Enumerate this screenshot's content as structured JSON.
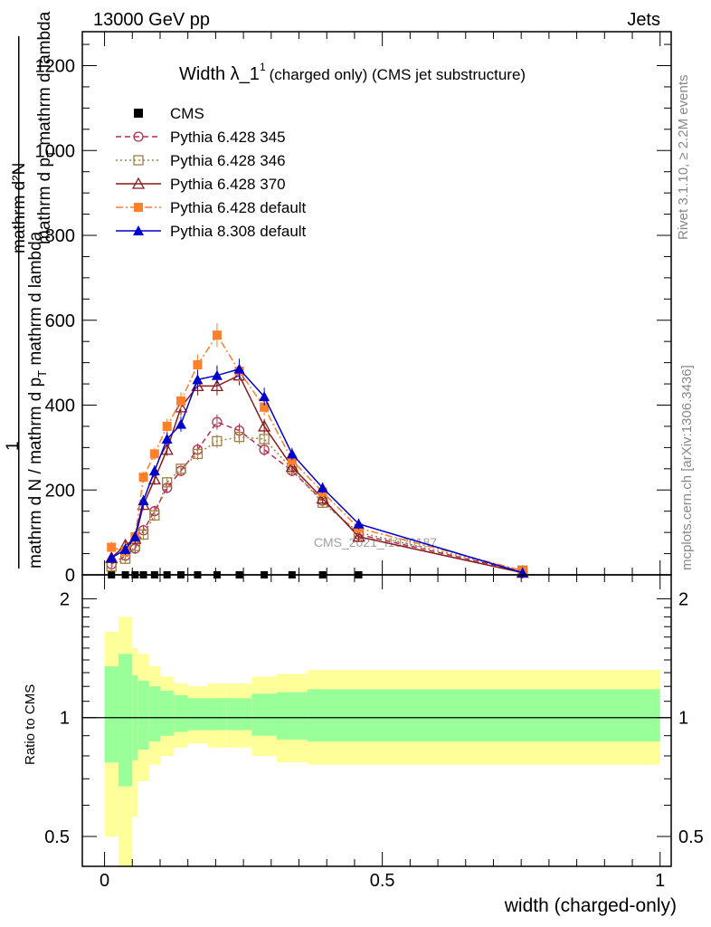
{
  "header": {
    "energy_label": "13000 GeV pp",
    "process_label": "Jets"
  },
  "side_labels": {
    "rivet": "Rivet 3.1.10, ≥ 2.2M events",
    "mcplots": "mcplots.cern.ch [arXiv:1306.3436]"
  },
  "chart_data": [
    {
      "type": "line",
      "title_main": "Width λ_1",
      "title_sup": "1",
      "title_rest": "(charged only) (CMS jet substructure)",
      "ylabel_lines": [
        "mathrm d²N",
        "mathrm d p",
        "T",
        " mathrm d lambda",
        "1",
        "mathrm d N / mathrm d p",
        "T",
        " mathrm d lambda"
      ],
      "watermark": "CMS_2021_I1920187",
      "xlim": [
        -0.04,
        1.02
      ],
      "ylim": [
        0,
        1280
      ],
      "yticks": [
        0,
        200,
        400,
        600,
        800,
        1000,
        1200
      ],
      "ytick_labels": [
        "0",
        "200",
        "400",
        "600",
        "800",
        "1000",
        "1200"
      ],
      "legend_position": "top-left",
      "x": [
        0.0125,
        0.0375,
        0.055,
        0.07,
        0.09,
        0.1125,
        0.1375,
        0.1675,
        0.2025,
        0.2425,
        0.2875,
        0.3375,
        0.3925,
        0.4575,
        0.7525
      ],
      "series": [
        {
          "name": "CMS",
          "color": "#000000",
          "marker": "square-filled",
          "dash": "none",
          "values": [
            0,
            0,
            0,
            0,
            0,
            0,
            0,
            0,
            0,
            0,
            0,
            0,
            0,
            0,
            null
          ]
        },
        {
          "name": "Pythia 6.428 345",
          "color": "#b03050",
          "marker": "circle-open",
          "dash": "6,4",
          "values": [
            25,
            45,
            62,
            105,
            150,
            205,
            245,
            295,
            360,
            340,
            295,
            245,
            175,
            95,
            8
          ]
        },
        {
          "name": "Pythia 6.428 346",
          "color": "#a08040",
          "marker": "square-open",
          "dash": "2,3",
          "values": [
            20,
            38,
            68,
            95,
            140,
            218,
            250,
            285,
            315,
            325,
            320,
            250,
            170,
            100,
            10
          ]
        },
        {
          "name": "Pythia 6.428 370",
          "color": "#8b1a1a",
          "marker": "triangle-open",
          "dash": "none",
          "values": [
            40,
            70,
            85,
            165,
            225,
            295,
            395,
            445,
            445,
            470,
            350,
            255,
            180,
            90,
            5
          ]
        },
        {
          "name": "Pythia 6.428 default",
          "color": "#ff7f2a",
          "marker": "square-filled",
          "dash": "8,3,2,3",
          "values": [
            65,
            55,
            90,
            230,
            285,
            350,
            410,
            495,
            565,
            480,
            395,
            270,
            195,
            110,
            10
          ]
        },
        {
          "name": "Pythia 8.308 default",
          "color": "#0000cc",
          "marker": "triangle-filled",
          "dash": "none",
          "values": [
            40,
            60,
            90,
            175,
            245,
            320,
            355,
            460,
            470,
            485,
            420,
            285,
            205,
            120,
            5
          ]
        }
      ]
    },
    {
      "type": "area",
      "ylabel": "Ratio to CMS",
      "xlabel": "width (charged-only)",
      "ylim": [
        0.42,
        2.3
      ],
      "log_y": true,
      "yticks": [
        0.5,
        1,
        2
      ],
      "ytick_labels": [
        "0.5",
        "1",
        "2"
      ],
      "xticks": [
        0,
        0.5,
        1
      ],
      "xtick_labels": [
        "0",
        "0.5",
        "1"
      ],
      "bins": [
        0,
        0.025,
        0.05,
        0.06,
        0.08,
        0.1,
        0.125,
        0.15,
        0.185,
        0.22,
        0.265,
        0.31,
        0.365,
        0.42,
        1.0
      ],
      "band_stat_upper": [
        1.35,
        1.45,
        1.28,
        1.24,
        1.2,
        1.17,
        1.14,
        1.12,
        1.12,
        1.12,
        1.15,
        1.16,
        1.18,
        1.18
      ],
      "band_stat_lower": [
        0.77,
        0.67,
        0.78,
        0.83,
        0.87,
        0.9,
        0.92,
        0.93,
        0.93,
        0.93,
        0.9,
        0.88,
        0.87,
        0.87
      ],
      "band_total_upper": [
        1.65,
        1.8,
        1.5,
        1.45,
        1.35,
        1.27,
        1.22,
        1.2,
        1.22,
        1.22,
        1.27,
        1.29,
        1.32,
        1.32
      ],
      "band_total_lower": [
        0.5,
        0.42,
        0.56,
        0.69,
        0.76,
        0.8,
        0.84,
        0.86,
        0.84,
        0.84,
        0.8,
        0.77,
        0.76,
        0.76
      ],
      "colors": {
        "stat": "#99ff99",
        "total": "#ffff99",
        "reference": "#000000"
      }
    }
  ]
}
